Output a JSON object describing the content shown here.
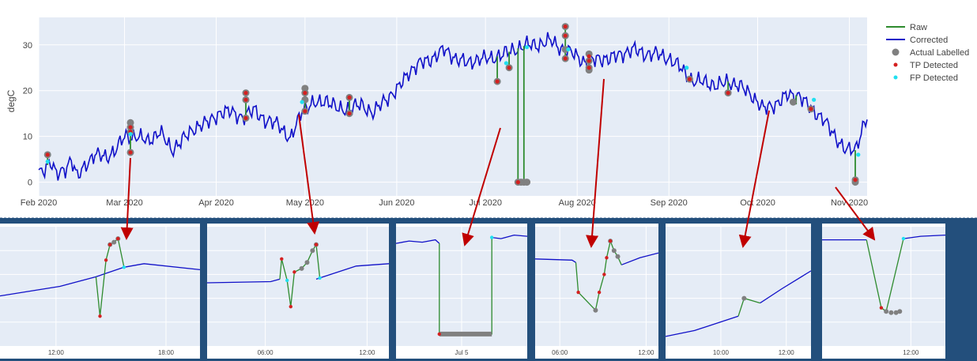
{
  "chart_data": {
    "type": "line",
    "ylabel": "degC",
    "xlabel": "",
    "ylim": [
      -3,
      36
    ],
    "yticks": [
      0,
      10,
      20,
      30
    ],
    "x_tick_labels": [
      "Feb 2020",
      "Mar 2020",
      "Apr 2020",
      "May 2020",
      "Jun 2020",
      "Jul 2020",
      "Aug 2020",
      "Sep 2020",
      "Oct 2020",
      "Nov 2020"
    ],
    "x_tick_days": [
      0,
      29,
      60,
      90,
      121,
      151,
      182,
      213,
      243,
      274
    ],
    "xlim_days": [
      0,
      280
    ],
    "grid": true,
    "legend_position": "right",
    "legend": [
      "Raw",
      "Corrected",
      "Actual Labelled",
      "TP Detected",
      "FP Detected"
    ],
    "colors": {
      "raw": "#2e8b2e",
      "corrected": "#1010c8",
      "actual": "#808080",
      "tp": "#d42020",
      "fp": "#20e0f0",
      "plot_bg": "#e5ecf6",
      "band": "#234f7c",
      "arrow": "#c00000"
    },
    "corrected_anchors": [
      [
        0,
        2
      ],
      [
        2,
        3
      ],
      [
        4,
        4.5
      ],
      [
        6,
        1.5
      ],
      [
        9,
        3
      ],
      [
        11,
        5
      ],
      [
        13,
        1
      ],
      [
        16,
        4
      ],
      [
        19,
        6
      ],
      [
        23,
        5.5
      ],
      [
        26,
        7
      ],
      [
        29,
        10
      ],
      [
        33,
        10
      ],
      [
        37,
        9
      ],
      [
        41,
        11
      ],
      [
        45,
        7
      ],
      [
        49,
        9.5
      ],
      [
        53,
        12
      ],
      [
        57,
        13
      ],
      [
        61,
        15
      ],
      [
        65,
        15.5
      ],
      [
        69,
        14
      ],
      [
        73,
        16
      ],
      [
        77,
        13
      ],
      [
        81,
        13
      ],
      [
        85,
        9
      ],
      [
        89,
        16
      ],
      [
        93,
        17
      ],
      [
        97,
        18
      ],
      [
        101,
        16
      ],
      [
        105,
        16
      ],
      [
        109,
        17
      ],
      [
        113,
        15
      ],
      [
        117,
        18
      ],
      [
        121,
        20
      ],
      [
        125,
        24
      ],
      [
        129,
        26
      ],
      [
        133,
        27
      ],
      [
        137,
        29
      ],
      [
        141,
        27
      ],
      [
        145,
        26
      ],
      [
        149,
        27
      ],
      [
        153,
        27
      ],
      [
        157,
        28
      ],
      [
        161,
        29
      ],
      [
        165,
        30
      ],
      [
        169,
        30
      ],
      [
        173,
        31
      ],
      [
        177,
        29
      ],
      [
        181,
        28
      ],
      [
        185,
        26
      ],
      [
        189,
        27
      ],
      [
        193,
        27
      ],
      [
        197,
        28
      ],
      [
        201,
        29
      ],
      [
        205,
        28
      ],
      [
        209,
        28
      ],
      [
        213,
        27
      ],
      [
        217,
        25
      ],
      [
        221,
        22
      ],
      [
        225,
        22
      ],
      [
        229,
        21
      ],
      [
        233,
        22
      ],
      [
        237,
        21
      ],
      [
        241,
        19
      ],
      [
        245,
        16
      ],
      [
        249,
        17
      ],
      [
        253,
        19
      ],
      [
        257,
        19
      ],
      [
        261,
        16
      ],
      [
        265,
        14
      ],
      [
        269,
        10
      ],
      [
        273,
        7
      ],
      [
        276,
        7
      ],
      [
        279,
        13
      ],
      [
        280,
        14
      ]
    ],
    "corrected_noise": 2.2,
    "raw_spikes": [
      {
        "x": 3,
        "y": [
          6
        ]
      },
      {
        "x": 31,
        "y": [
          13,
          6
        ]
      },
      {
        "x": 70,
        "y": [
          19,
          14
        ]
      },
      {
        "x": 90,
        "y": [
          20,
          15
        ]
      },
      {
        "x": 105,
        "y": [
          18,
          15
        ]
      },
      {
        "x": 155,
        "y": [
          22
        ]
      },
      {
        "x": 159,
        "y": [
          25
        ]
      },
      {
        "x": 162,
        "y": [
          0
        ]
      },
      {
        "x": 164,
        "y": [
          0
        ]
      },
      {
        "x": 178,
        "y": [
          34,
          27
        ]
      },
      {
        "x": 186,
        "y": [
          28,
          24
        ]
      },
      {
        "x": 220,
        "y": [
          22
        ]
      },
      {
        "x": 233,
        "y": [
          19
        ]
      },
      {
        "x": 256,
        "y": [
          17
        ]
      },
      {
        "x": 261,
        "y": [
          16
        ]
      },
      {
        "x": 276,
        "y": [
          0
        ]
      }
    ],
    "actual_labelled": [
      {
        "x": 3,
        "y": 6
      },
      {
        "x": 31,
        "y": 13
      },
      {
        "x": 31,
        "y": 12
      },
      {
        "x": 31,
        "y": 11
      },
      {
        "x": 31,
        "y": 6.5
      },
      {
        "x": 70,
        "y": 19.5
      },
      {
        "x": 70,
        "y": 18
      },
      {
        "x": 70,
        "y": 14
      },
      {
        "x": 90,
        "y": 20.5
      },
      {
        "x": 90,
        "y": 19.5
      },
      {
        "x": 90,
        "y": 18
      },
      {
        "x": 90,
        "y": 15.5
      },
      {
        "x": 105,
        "y": 18.5
      },
      {
        "x": 105,
        "y": 15
      },
      {
        "x": 155,
        "y": 22
      },
      {
        "x": 159,
        "y": 25
      },
      {
        "x": 162,
        "y": 0
      },
      {
        "x": 163,
        "y": 0
      },
      {
        "x": 164,
        "y": 0
      },
      {
        "x": 165,
        "y": 0
      },
      {
        "x": 178,
        "y": 34
      },
      {
        "x": 178,
        "y": 32
      },
      {
        "x": 178,
        "y": 29
      },
      {
        "x": 178,
        "y": 27
      },
      {
        "x": 186,
        "y": 28
      },
      {
        "x": 186,
        "y": 26.5
      },
      {
        "x": 186,
        "y": 25
      },
      {
        "x": 186,
        "y": 24.5
      },
      {
        "x": 220,
        "y": 22.5
      },
      {
        "x": 233,
        "y": 19.5
      },
      {
        "x": 255,
        "y": 17.5
      },
      {
        "x": 261,
        "y": 16
      },
      {
        "x": 276,
        "y": 0.5
      },
      {
        "x": 276,
        "y": 0
      }
    ],
    "tp_detected": [
      {
        "x": 3,
        "y": 6
      },
      {
        "x": 31,
        "y": 12
      },
      {
        "x": 31,
        "y": 11
      },
      {
        "x": 31,
        "y": 6.5
      },
      {
        "x": 70,
        "y": 19.5
      },
      {
        "x": 70,
        "y": 18
      },
      {
        "x": 70,
        "y": 14
      },
      {
        "x": 90,
        "y": 19.5
      },
      {
        "x": 90,
        "y": 15.5
      },
      {
        "x": 105,
        "y": 18.5
      },
      {
        "x": 105,
        "y": 15
      },
      {
        "x": 155,
        "y": 22
      },
      {
        "x": 159,
        "y": 25
      },
      {
        "x": 162,
        "y": 0
      },
      {
        "x": 178,
        "y": 34
      },
      {
        "x": 178,
        "y": 32
      },
      {
        "x": 178,
        "y": 27
      },
      {
        "x": 186,
        "y": 27.5
      },
      {
        "x": 186,
        "y": 26.5
      },
      {
        "x": 186,
        "y": 25
      },
      {
        "x": 220,
        "y": 22.5
      },
      {
        "x": 233,
        "y": 19.5
      },
      {
        "x": 261,
        "y": 16
      },
      {
        "x": 276,
        "y": 0.5
      }
    ],
    "fp_detected": [
      {
        "x": 3,
        "y": 4.5
      },
      {
        "x": 31,
        "y": 10.5
      },
      {
        "x": 89,
        "y": 17.5
      },
      {
        "x": 158,
        "y": 26
      },
      {
        "x": 165,
        "y": 29.5
      },
      {
        "x": 179,
        "y": 29
      },
      {
        "x": 219,
        "y": 25
      },
      {
        "x": 262,
        "y": 18
      },
      {
        "x": 277,
        "y": 6
      }
    ],
    "zoom_panels": [
      {
        "name": "zoom-mar",
        "tick_labels": [
          "12:00",
          "18:00"
        ],
        "tick_x": [
          0.28,
          0.83
        ],
        "ylim": [
          0,
          100
        ],
        "corrected": [
          [
            0,
            42
          ],
          [
            0.3,
            50
          ],
          [
            0.48,
            58
          ],
          [
            0.62,
            66
          ]
        ],
        "corrected_after": [
          [
            0.62,
            66
          ],
          [
            0.72,
            69
          ],
          [
            1.0,
            64
          ]
        ],
        "raw": [
          [
            0.48,
            58
          ],
          [
            0.5,
            25
          ],
          [
            0.53,
            72
          ],
          [
            0.55,
            85
          ],
          [
            0.57,
            87
          ],
          [
            0.59,
            90
          ],
          [
            0.62,
            66
          ]
        ],
        "actual": [
          [
            0.55,
            85
          ],
          [
            0.57,
            87
          ],
          [
            0.59,
            90
          ]
        ],
        "tp": [
          [
            0.5,
            25
          ],
          [
            0.53,
            72
          ],
          [
            0.55,
            85
          ],
          [
            0.59,
            90
          ]
        ],
        "fp": [
          [
            0.62,
            66
          ]
        ]
      },
      {
        "name": "zoom-may",
        "tick_labels": [
          "06:00",
          "12:00"
        ],
        "tick_x": [
          0.32,
          0.88
        ],
        "ylim": [
          0,
          100
        ],
        "corrected": [
          [
            0,
            53
          ],
          [
            0.35,
            54
          ],
          [
            0.4,
            56
          ]
        ],
        "corrected_after": [
          [
            0.6,
            56
          ],
          [
            0.82,
            67
          ],
          [
            1.0,
            69
          ]
        ],
        "raw": [
          [
            0.4,
            56
          ],
          [
            0.41,
            73
          ],
          [
            0.44,
            55
          ],
          [
            0.46,
            33
          ],
          [
            0.48,
            62
          ],
          [
            0.52,
            65
          ],
          [
            0.55,
            70
          ],
          [
            0.58,
            80
          ],
          [
            0.6,
            85
          ],
          [
            0.62,
            57
          ]
        ],
        "actual": [
          [
            0.52,
            65
          ],
          [
            0.55,
            70
          ],
          [
            0.58,
            80
          ],
          [
            0.6,
            85
          ]
        ],
        "tp": [
          [
            0.41,
            73
          ],
          [
            0.46,
            33
          ],
          [
            0.48,
            62
          ],
          [
            0.6,
            85
          ]
        ],
        "fp": [
          [
            0.44,
            55
          ],
          [
            0.62,
            57
          ]
        ]
      },
      {
        "name": "zoom-jul",
        "tick_labels": [
          "Jul 5"
        ],
        "tick_x": [
          0.5
        ],
        "ylim": [
          0,
          100
        ],
        "corrected": [
          [
            0,
            86
          ],
          [
            0.1,
            88
          ],
          [
            0.2,
            87
          ],
          [
            0.3,
            89
          ],
          [
            0.33,
            86
          ]
        ],
        "corrected_after": [
          [
            0.73,
            91
          ],
          [
            0.8,
            90
          ],
          [
            0.9,
            93
          ],
          [
            1.0,
            92
          ]
        ],
        "raw": [
          [
            0.33,
            86
          ],
          [
            0.33,
            10
          ],
          [
            0.73,
            10
          ],
          [
            0.73,
            91
          ]
        ],
        "actual_line": [
          [
            0.33,
            10
          ],
          [
            0.73,
            10
          ]
        ],
        "actual": [],
        "tp": [
          [
            0.33,
            10
          ]
        ],
        "fp": [
          [
            0.73,
            91
          ]
        ]
      },
      {
        "name": "zoom-aug",
        "tick_labels": [
          "06:00",
          "12:00"
        ],
        "tick_x": [
          0.2,
          0.9
        ],
        "ylim": [
          0,
          100
        ],
        "corrected": [
          [
            0,
            73
          ],
          [
            0.3,
            72
          ],
          [
            0.33,
            70
          ]
        ],
        "corrected_after": [
          [
            0.7,
            68
          ],
          [
            0.85,
            74
          ],
          [
            1.0,
            78
          ]
        ],
        "raw": [
          [
            0.33,
            70
          ],
          [
            0.35,
            45
          ],
          [
            0.49,
            30
          ],
          [
            0.52,
            45
          ],
          [
            0.56,
            60
          ],
          [
            0.58,
            74
          ],
          [
            0.61,
            88
          ],
          [
            0.64,
            80
          ],
          [
            0.67,
            75
          ],
          [
            0.7,
            68
          ]
        ],
        "actual": [
          [
            0.49,
            30
          ],
          [
            0.64,
            80
          ],
          [
            0.67,
            75
          ],
          [
            0.61,
            88
          ]
        ],
        "tp": [
          [
            0.35,
            45
          ],
          [
            0.52,
            45
          ],
          [
            0.56,
            60
          ],
          [
            0.58,
            74
          ],
          [
            0.61,
            88
          ]
        ],
        "fp": []
      },
      {
        "name": "zoom-oct",
        "tick_labels": [
          "10:00",
          "12:00"
        ],
        "tick_x": [
          0.38,
          0.83
        ],
        "ylim": [
          0,
          100
        ],
        "corrected": [
          [
            0,
            8
          ],
          [
            0.2,
            13
          ],
          [
            0.5,
            25
          ]
        ],
        "corrected_after": [
          [
            0.65,
            36
          ],
          [
            0.8,
            48
          ],
          [
            1.0,
            63
          ]
        ],
        "raw": [
          [
            0.5,
            25
          ],
          [
            0.54,
            40
          ],
          [
            0.65,
            36
          ]
        ],
        "actual": [
          [
            0.54,
            40
          ]
        ],
        "tp": [],
        "fp": []
      },
      {
        "name": "zoom-nov",
        "tick_labels": [
          "12:00"
        ],
        "tick_x": [
          0.72
        ],
        "ylim": [
          0,
          100
        ],
        "corrected": [
          [
            0,
            89
          ],
          [
            0.15,
            89
          ],
          [
            0.36,
            89
          ]
        ],
        "corrected_after": [
          [
            0.66,
            90
          ],
          [
            0.8,
            92
          ],
          [
            1.0,
            93
          ]
        ],
        "raw": [
          [
            0.36,
            89
          ],
          [
            0.48,
            32
          ],
          [
            0.52,
            29
          ],
          [
            0.66,
            90
          ]
        ],
        "actual": [
          [
            0.52,
            29
          ],
          [
            0.56,
            28
          ],
          [
            0.6,
            28
          ],
          [
            0.63,
            29
          ]
        ],
        "tp": [
          [
            0.48,
            32
          ]
        ],
        "fp": [
          [
            0.66,
            90
          ]
        ]
      }
    ]
  }
}
